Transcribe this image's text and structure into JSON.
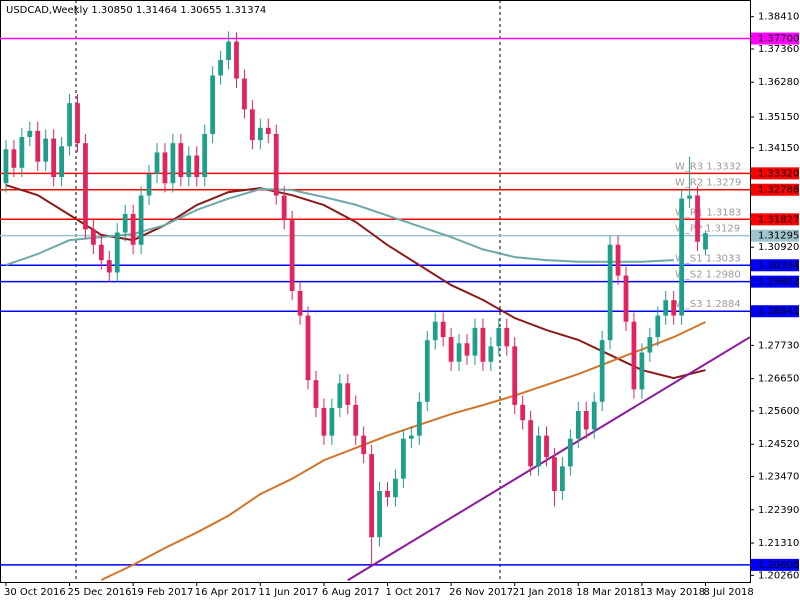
{
  "chart_data": {
    "type": "candlestick",
    "title": "USDCAD,Weekly  1.30850 1.31464 1.30655 1.31374",
    "categories": [
      "30 Oct 2016",
      null,
      null,
      null,
      null,
      null,
      null,
      null,
      "25 Dec 2016",
      null,
      null,
      null,
      null,
      null,
      null,
      null,
      "19 Feb 2017",
      null,
      null,
      null,
      null,
      null,
      null,
      null,
      "16 Apr 2017",
      null,
      null,
      null,
      null,
      null,
      null,
      null,
      "11 Jun 2017",
      null,
      null,
      null,
      null,
      null,
      null,
      null,
      "6 Aug 2017",
      null,
      null,
      null,
      null,
      null,
      null,
      null,
      "1 Oct 2017",
      null,
      null,
      null,
      null,
      null,
      null,
      null,
      "26 Nov 2017",
      null,
      null,
      null,
      null,
      null,
      null,
      null,
      "21 Jan 2018",
      null,
      null,
      null,
      null,
      null,
      null,
      null,
      "18 Mar 2018",
      null,
      null,
      null,
      null,
      null,
      null,
      null,
      "13 May 2018",
      null,
      null,
      null,
      null,
      null,
      null,
      null,
      "8 Jul 2018"
    ],
    "open": [
      1.33,
      1.341,
      1.335,
      1.345,
      1.347,
      1.337,
      1.3445,
      1.332,
      1.342,
      1.356,
      1.343,
      1.315,
      1.31,
      1.305,
      1.301,
      1.314,
      1.32,
      1.31,
      1.326,
      1.333,
      1.34,
      1.33,
      1.343,
      1.332,
      1.339,
      1.332,
      1.346,
      1.365,
      1.37,
      1.376,
      1.364,
      1.354,
      1.344,
      1.348,
      1.346,
      1.326,
      1.318,
      1.295,
      1.287,
      1.266,
      1.257,
      1.248,
      1.257,
      1.265,
      1.258,
      1.248,
      1.242,
      1.215,
      1.23,
      1.228,
      1.234,
      1.247,
      1.248,
      1.259,
      1.279,
      1.285,
      1.28,
      1.272,
      1.278,
      1.274,
      1.283,
      1.272,
      1.277,
      1.283,
      1.277,
      1.258,
      1.253,
      1.238,
      1.248,
      1.241,
      1.23,
      1.238,
      1.247,
      1.256,
      1.25,
      1.259,
      1.279,
      1.31,
      1.3,
      1.285,
      1.263,
      1.275,
      1.28,
      1.287,
      1.292,
      1.287,
      1.325,
      1.326,
      1.3085
    ],
    "high": [
      1.344,
      1.344,
      1.348,
      1.35,
      1.35,
      1.3475,
      1.3475,
      1.345,
      1.359,
      1.359,
      1.346,
      1.318,
      1.313,
      1.308,
      1.317,
      1.323,
      1.323,
      1.329,
      1.336,
      1.343,
      1.343,
      1.346,
      1.346,
      1.342,
      1.342,
      1.349,
      1.368,
      1.373,
      1.3793,
      1.379,
      1.367,
      1.357,
      1.351,
      1.351,
      1.349,
      1.329,
      1.321,
      1.298,
      1.29,
      1.269,
      1.26,
      1.26,
      1.268,
      1.268,
      1.261,
      1.251,
      1.245,
      1.233,
      1.233,
      1.237,
      1.25,
      1.251,
      1.262,
      1.282,
      1.288,
      1.288,
      1.283,
      1.281,
      1.281,
      1.286,
      1.286,
      1.28,
      1.286,
      1.286,
      1.28,
      1.261,
      1.256,
      1.251,
      1.251,
      1.244,
      1.241,
      1.25,
      1.259,
      1.259,
      1.262,
      1.282,
      1.313,
      1.313,
      1.303,
      1.288,
      1.278,
      1.283,
      1.29,
      1.295,
      1.295,
      1.328,
      1.3386,
      1.329,
      1.31464
    ],
    "low": [
      1.327,
      1.332,
      1.332,
      1.342,
      1.334,
      1.334,
      1.329,
      1.329,
      1.339,
      1.34,
      1.312,
      1.307,
      1.302,
      1.298,
      1.298,
      1.311,
      1.307,
      1.307,
      1.323,
      1.33,
      1.327,
      1.327,
      1.329,
      1.329,
      1.329,
      1.329,
      1.343,
      1.362,
      1.367,
      1.361,
      1.351,
      1.341,
      1.341,
      1.343,
      1.323,
      1.315,
      1.292,
      1.284,
      1.263,
      1.254,
      1.245,
      1.245,
      1.254,
      1.255,
      1.245,
      1.239,
      1.2062,
      1.212,
      1.225,
      1.225,
      1.231,
      1.244,
      1.245,
      1.256,
      1.276,
      1.277,
      1.269,
      1.269,
      1.271,
      1.271,
      1.269,
      1.269,
      1.274,
      1.274,
      1.255,
      1.25,
      1.235,
      1.235,
      1.238,
      1.225,
      1.227,
      1.235,
      1.244,
      1.247,
      1.247,
      1.256,
      1.276,
      1.297,
      1.282,
      1.26,
      1.26,
      1.272,
      1.277,
      1.284,
      1.284,
      1.284,
      1.322,
      1.308,
      1.30655
    ],
    "close": [
      1.341,
      1.335,
      1.345,
      1.347,
      1.337,
      1.3445,
      1.332,
      1.342,
      1.356,
      1.343,
      1.315,
      1.31,
      1.305,
      1.301,
      1.314,
      1.32,
      1.31,
      1.326,
      1.333,
      1.34,
      1.33,
      1.343,
      1.332,
      1.339,
      1.332,
      1.346,
      1.365,
      1.37,
      1.376,
      1.364,
      1.354,
      1.344,
      1.348,
      1.346,
      1.326,
      1.318,
      1.295,
      1.287,
      1.266,
      1.257,
      1.248,
      1.257,
      1.265,
      1.258,
      1.248,
      1.242,
      1.215,
      1.23,
      1.228,
      1.234,
      1.247,
      1.248,
      1.259,
      1.279,
      1.285,
      1.28,
      1.272,
      1.278,
      1.274,
      1.283,
      1.272,
      1.277,
      1.283,
      1.277,
      1.258,
      1.253,
      1.238,
      1.248,
      1.241,
      1.23,
      1.238,
      1.247,
      1.256,
      1.25,
      1.259,
      1.279,
      1.31,
      1.3,
      1.285,
      1.263,
      1.275,
      1.28,
      1.287,
      1.292,
      1.287,
      1.325,
      1.326,
      1.311,
      1.31374
    ],
    "up_color": "#1f9e8c",
    "down_color": "#e2245c",
    "lines": [
      {
        "color": "#8b1a1a",
        "x": [
          0,
          4,
          8,
          12,
          16,
          20,
          24,
          28,
          32,
          36,
          40,
          44,
          48,
          52,
          56,
          60,
          64,
          68,
          72,
          76,
          80,
          84,
          88
        ],
        "values": [
          1.3294,
          1.3261,
          1.3197,
          1.3132,
          1.3115,
          1.3164,
          1.3229,
          1.3271,
          1.3284,
          1.3261,
          1.3229,
          1.3174,
          1.3099,
          1.3034,
          1.2969,
          1.2921,
          1.2862,
          1.2823,
          1.2791,
          1.2742,
          1.2693,
          1.2667,
          1.2693
        ]
      },
      {
        "color": "#6fa8a8",
        "x": [
          0,
          4,
          8,
          12,
          16,
          20,
          24,
          28,
          32,
          36,
          40,
          44,
          48,
          52,
          56,
          60,
          64,
          68,
          72,
          76,
          80,
          84
        ],
        "values": [
          1.3034,
          1.307,
          1.3115,
          1.3125,
          1.3135,
          1.3164,
          1.3213,
          1.325,
          1.3281,
          1.3278,
          1.3255,
          1.323,
          1.3195,
          1.316,
          1.3125,
          1.3085,
          1.306,
          1.305,
          1.3045,
          1.3045,
          1.3045,
          1.305
        ]
      },
      {
        "color": "#d2752a",
        "x": [
          12,
          16,
          20,
          24,
          28,
          32,
          36,
          40,
          44,
          48,
          52,
          56,
          60,
          64,
          68,
          72,
          76,
          80,
          84,
          88
        ],
        "values": [
          1.2011,
          1.206,
          1.2115,
          1.2165,
          1.222,
          1.229,
          1.234,
          1.24,
          1.244,
          1.248,
          1.2515,
          1.255,
          1.2579,
          1.261,
          1.2645,
          1.268,
          1.272,
          1.276,
          1.28,
          1.2849
        ]
      },
      {
        "color": "#8b1a9b",
        "x": [
          43,
          93.6
        ],
        "values": [
          1.201,
          1.28
        ]
      }
    ],
    "levels": [
      {
        "value": 1.377,
        "label": "1.37700",
        "color": "#ff00ff"
      },
      {
        "value": 1.3332,
        "label": "1.33320",
        "color": "#ff0000",
        "name": "W_R3 1.3332"
      },
      {
        "value": 1.32788,
        "label": "1.32788",
        "color": "#ff0000",
        "name": "W_R2 1.3279"
      },
      {
        "value": 1.31827,
        "label": "1.31827",
        "color": "#ff0000",
        "name": "W_R1 1.3183"
      },
      {
        "value": 1.31295,
        "label": "1.31295",
        "color": "#9ec4cc",
        "name": "W_PP 1.3129"
      },
      {
        "value": 1.30334,
        "label": "1.30334",
        "color": "#0000ff",
        "name": "W_S1 1.3033"
      },
      {
        "value": 1.29802,
        "label": "1.29802",
        "color": "#0000ff",
        "name": "W_S2 1.2980"
      },
      {
        "value": 1.28841,
        "label": "1.28841",
        "color": "#0000ff",
        "name": "W_S3 1.2884"
      },
      {
        "value": 1.206,
        "label": "1.20600",
        "color": "#0000ff"
      }
    ],
    "xlim": [
      -0.75,
      93.6
    ],
    "ylim": [
      1.20044,
      1.38952
    ],
    "yticks": [
      {
        "value": 1.3841,
        "label": "1.38410"
      },
      {
        "value": 1.3736,
        "label": "1.37360"
      },
      {
        "value": 1.3628,
        "label": "1.36280"
      },
      {
        "value": 1.3515,
        "label": "1.35150"
      },
      {
        "value": 1.3415,
        "label": "1.34150"
      },
      {
        "value": 1.3092,
        "label": "1.30920"
      },
      {
        "value": 1.2773,
        "label": "1.27730"
      },
      {
        "value": 1.2665,
        "label": "1.26650"
      },
      {
        "value": 1.256,
        "label": "1.25600"
      },
      {
        "value": 1.2452,
        "label": "1.24520"
      },
      {
        "value": 1.2347,
        "label": "1.23470"
      },
      {
        "value": 1.2239,
        "label": "1.22390"
      },
      {
        "value": 1.2131,
        "label": "1.21310"
      },
      {
        "value": 1.2026,
        "label": "1.20260"
      }
    ]
  }
}
